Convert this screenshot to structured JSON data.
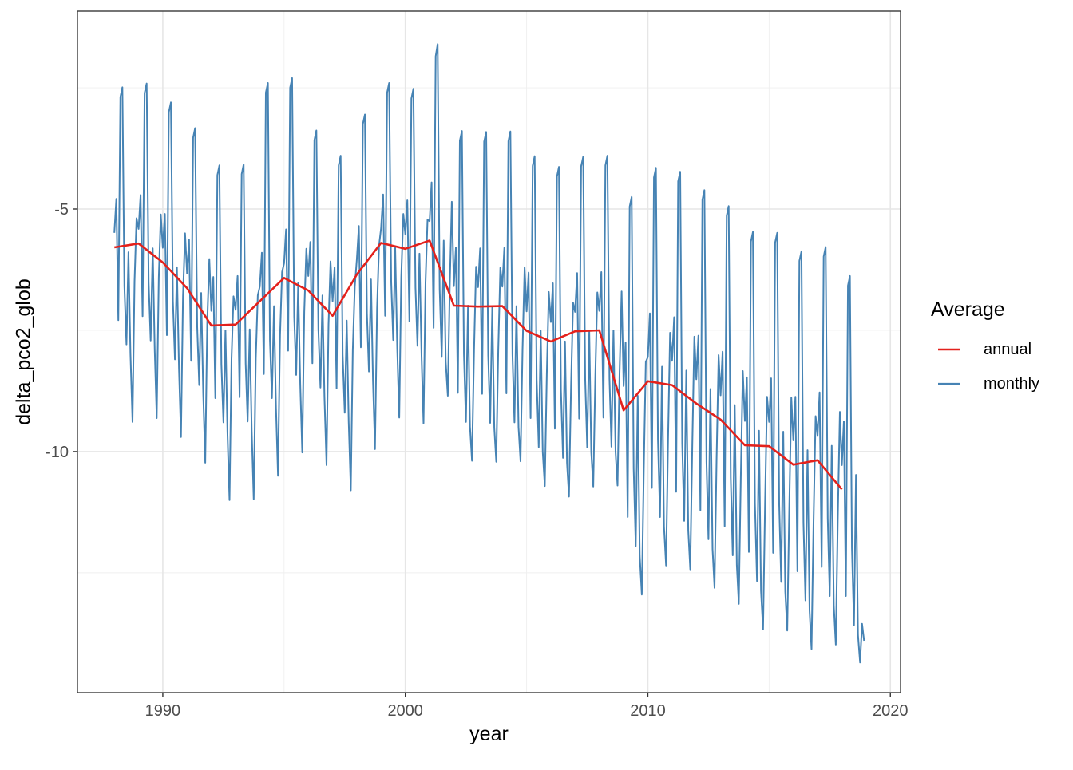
{
  "chart_data": {
    "type": "line",
    "title": "",
    "xlabel": "year",
    "ylabel": "delta_pco2_glob",
    "legend_title": "Average",
    "legend_position": "right",
    "grid": "on",
    "x_ticks": [
      1990,
      2000,
      2010,
      2020
    ],
    "x_minor_ticks": [
      1995,
      2005,
      2015
    ],
    "y_ticks": [
      -5,
      -10
    ],
    "y_minor_ticks": [
      -2.5,
      -7.5,
      -12.5
    ],
    "xlim": [
      1986.48,
      2020.42
    ],
    "ylim": [
      -14.97,
      -0.92
    ],
    "series": [
      {
        "name": "annual",
        "color": "#e3211c",
        "x_start": 1988,
        "x_step": 1,
        "values": [
          -5.79,
          -5.71,
          -6.1,
          -6.63,
          -7.4,
          -7.38,
          -6.9,
          -6.42,
          -6.68,
          -7.2,
          -6.35,
          -5.7,
          -5.82,
          -5.65,
          -6.99,
          -7.01,
          -7.0,
          -7.51,
          -7.73,
          -7.52,
          -7.5,
          -9.15,
          -8.55,
          -8.63,
          -9.01,
          -9.34,
          -9.87,
          -9.89,
          -10.27,
          -10.18,
          -10.78
        ]
      },
      {
        "name": "monthly",
        "color": "#4683b4",
        "x_start": 1988,
        "x_step": 0.0833333,
        "values": [
          -5.49,
          -4.79,
          -7.29,
          -2.69,
          -2.49,
          -6.59,
          -7.79,
          -5.89,
          -7.99,
          -9.39,
          -6.49,
          -5.19,
          -5.41,
          -4.71,
          -7.21,
          -2.61,
          -2.41,
          -6.51,
          -7.71,
          -5.81,
          -7.91,
          -9.31,
          -6.41,
          -5.11,
          -5.8,
          -5.1,
          -7.6,
          -3.0,
          -2.8,
          -6.9,
          -8.1,
          -6.2,
          -8.3,
          -9.7,
          -6.8,
          -5.5,
          -6.33,
          -5.63,
          -8.13,
          -3.53,
          -3.33,
          -7.43,
          -8.63,
          -6.73,
          -8.83,
          -10.23,
          -7.33,
          -6.03,
          -7.1,
          -6.4,
          -8.9,
          -4.3,
          -4.1,
          -8.2,
          -9.4,
          -7.5,
          -9.6,
          -11.0,
          -8.1,
          -6.8,
          -7.08,
          -6.38,
          -8.88,
          -4.28,
          -4.08,
          -8.18,
          -9.38,
          -7.48,
          -9.58,
          -10.98,
          -8.08,
          -6.78,
          -6.6,
          -5.9,
          -8.4,
          -2.6,
          -2.4,
          -7.7,
          -8.9,
          -7.0,
          -9.1,
          -10.5,
          -7.6,
          -6.3,
          -6.12,
          -5.42,
          -7.92,
          -2.5,
          -2.3,
          -7.22,
          -8.42,
          -6.52,
          -8.62,
          -10.02,
          -7.12,
          -5.82,
          -6.38,
          -5.68,
          -8.18,
          -3.58,
          -3.38,
          -7.48,
          -8.68,
          -6.78,
          -8.88,
          -10.28,
          -7.38,
          -6.08,
          -6.9,
          -6.2,
          -8.7,
          -4.1,
          -3.9,
          -8.0,
          -9.2,
          -7.3,
          -9.4,
          -10.8,
          -7.9,
          -6.6,
          -6.05,
          -5.35,
          -7.85,
          -3.25,
          -3.05,
          -7.15,
          -8.35,
          -6.45,
          -8.55,
          -9.95,
          -7.05,
          -5.75,
          -5.4,
          -4.7,
          -7.2,
          -2.6,
          -2.4,
          -6.5,
          -7.7,
          -5.8,
          -7.9,
          -9.3,
          -6.4,
          -5.1,
          -5.52,
          -4.82,
          -7.32,
          -2.72,
          -2.52,
          -6.62,
          -7.82,
          -5.92,
          -8.02,
          -9.42,
          -6.52,
          -5.22,
          -5.25,
          -4.45,
          -7.45,
          -1.85,
          -1.6,
          -6.65,
          -8.05,
          -5.65,
          -8.15,
          -8.85,
          -6.55,
          -4.85,
          -6.59,
          -5.79,
          -8.79,
          -3.59,
          -3.39,
          -7.99,
          -9.39,
          -6.99,
          -9.49,
          -10.19,
          -7.89,
          -6.19,
          -6.61,
          -5.81,
          -8.81,
          -3.61,
          -3.41,
          -8.01,
          -9.41,
          -7.01,
          -9.51,
          -10.21,
          -7.91,
          -6.21,
          -6.6,
          -5.8,
          -8.8,
          -3.6,
          -3.4,
          -8.0,
          -9.4,
          -7.0,
          -9.5,
          -10.2,
          -7.9,
          -6.2,
          -7.11,
          -6.31,
          -9.31,
          -4.11,
          -3.91,
          -8.51,
          -9.91,
          -7.51,
          -10.01,
          -10.71,
          -8.41,
          -6.71,
          -7.33,
          -6.53,
          -9.53,
          -4.33,
          -4.13,
          -8.73,
          -10.13,
          -7.73,
          -10.23,
          -10.93,
          -8.63,
          -6.93,
          -7.12,
          -6.32,
          -9.32,
          -4.12,
          -3.92,
          -8.52,
          -9.92,
          -7.52,
          -10.02,
          -10.72,
          -8.42,
          -6.72,
          -7.1,
          -6.3,
          -9.3,
          -4.1,
          -3.9,
          -8.5,
          -9.9,
          -7.5,
          -10.0,
          -10.7,
          -8.4,
          -6.7,
          -8.65,
          -7.75,
          -11.35,
          -4.95,
          -4.75,
          -10.35,
          -11.95,
          -8.85,
          -12.15,
          -12.95,
          -10.35,
          -8.15,
          -8.05,
          -7.15,
          -10.75,
          -4.35,
          -4.15,
          -9.75,
          -11.35,
          -8.25,
          -11.55,
          -12.35,
          -9.75,
          -7.55,
          -8.13,
          -7.23,
          -10.83,
          -4.43,
          -4.23,
          -9.83,
          -11.43,
          -8.33,
          -11.63,
          -12.43,
          -9.83,
          -7.63,
          -8.51,
          -7.61,
          -11.21,
          -4.81,
          -4.61,
          -10.21,
          -11.81,
          -8.71,
          -12.01,
          -12.81,
          -10.21,
          -8.01,
          -8.84,
          -7.94,
          -11.54,
          -5.14,
          -4.94,
          -10.54,
          -12.14,
          -9.04,
          -12.34,
          -13.14,
          -10.54,
          -8.34,
          -9.37,
          -8.47,
          -12.07,
          -5.67,
          -5.47,
          -11.07,
          -12.67,
          -9.57,
          -12.87,
          -13.67,
          -11.07,
          -8.87,
          -9.39,
          -8.49,
          -12.09,
          -5.69,
          -5.49,
          -11.09,
          -12.69,
          -9.59,
          -12.89,
          -13.69,
          -11.09,
          -8.89,
          -9.77,
          -8.87,
          -12.47,
          -6.07,
          -5.87,
          -11.47,
          -13.07,
          -9.97,
          -13.27,
          -14.07,
          -11.47,
          -9.27,
          -9.68,
          -8.78,
          -12.38,
          -5.98,
          -5.78,
          -11.38,
          -12.98,
          -9.88,
          -13.18,
          -13.98,
          -11.38,
          -9.18,
          -10.28,
          -9.38,
          -12.98,
          -6.58,
          -6.38,
          -11.98,
          -13.58,
          -10.48,
          -13.78,
          -14.35,
          -13.55,
          -13.9
        ]
      }
    ]
  }
}
